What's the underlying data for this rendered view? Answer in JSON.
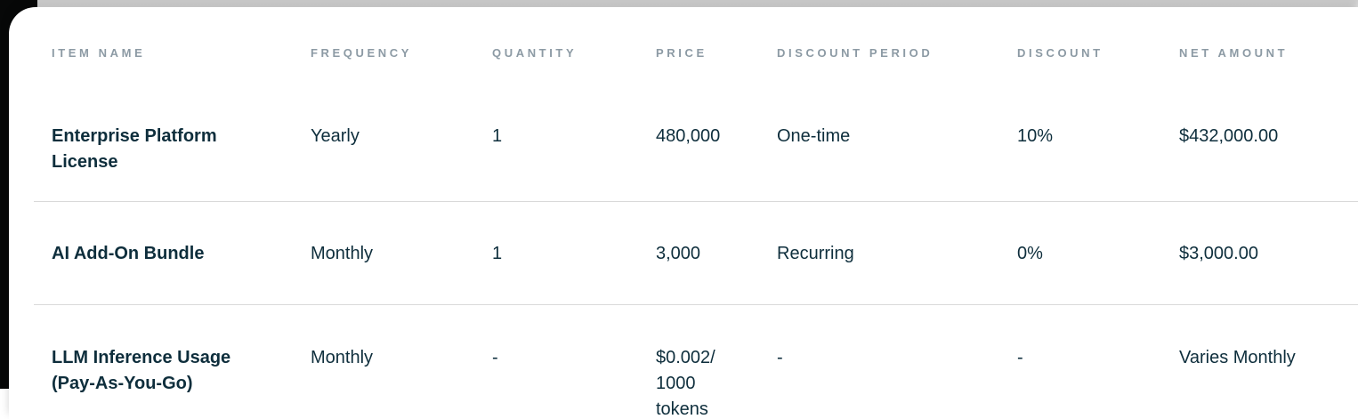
{
  "colors": {
    "card_background": "#ffffff",
    "page_background_dark": "#070808",
    "header_label": "#8c9aa4",
    "body_text": "#0e2e3c",
    "divider": "#d9d9d9"
  },
  "table": {
    "columns": [
      {
        "key": "item_name",
        "label": "ITEM NAME"
      },
      {
        "key": "frequency",
        "label": "FREQUENCY"
      },
      {
        "key": "quantity",
        "label": "QUANTITY"
      },
      {
        "key": "price",
        "label": "PRICE"
      },
      {
        "key": "discount_period",
        "label": "DISCOUNT PERIOD"
      },
      {
        "key": "discount",
        "label": "DISCOUNT"
      },
      {
        "key": "net_amount",
        "label": "NET AMOUNT"
      }
    ],
    "rows": [
      {
        "item_name": "Enterprise Platform\nLicense",
        "frequency": "Yearly",
        "quantity": "1",
        "price": "480,000",
        "discount_period": "One-time",
        "discount": "10%",
        "net_amount": "$432,000.00"
      },
      {
        "item_name": "AI Add-On Bundle",
        "frequency": "Monthly",
        "quantity": "1",
        "price": "3,000",
        "discount_period": "Recurring",
        "discount": "0%",
        "net_amount": "$3,000.00"
      },
      {
        "item_name": "LLM Inference Usage\n(Pay-As-You-Go)",
        "frequency": "Monthly",
        "quantity": "-",
        "price": "$0.002/\n1000\ntokens",
        "discount_period": "-",
        "discount": "-",
        "net_amount": "Varies Monthly"
      }
    ]
  }
}
